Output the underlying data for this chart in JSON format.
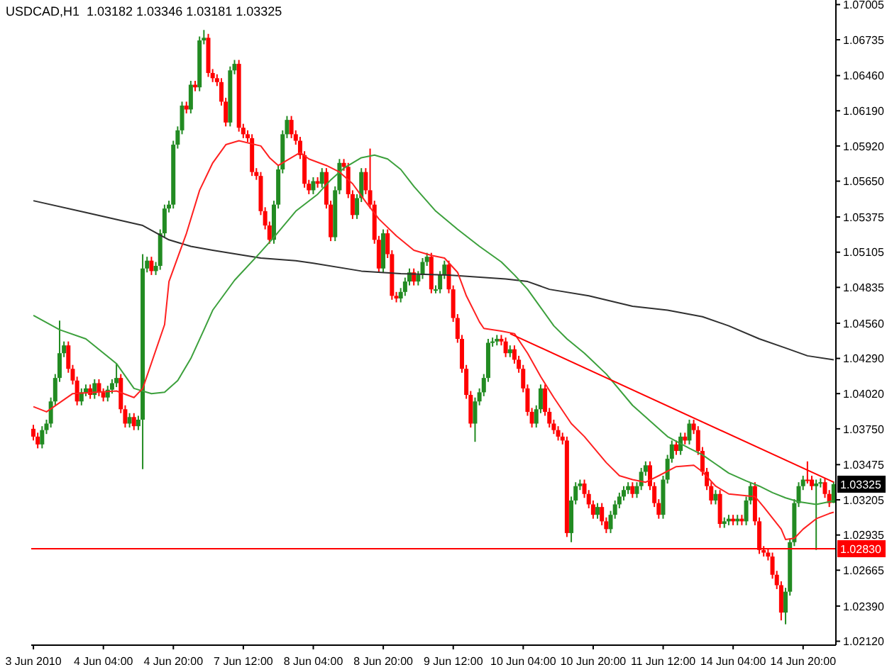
{
  "chart_data": {
    "type": "candlestick",
    "title": "USDCAD,H1  1.03182 1.03346 1.03181 1.03325",
    "categories": [
      "3 Jun 2010",
      null,
      null,
      null,
      null,
      null,
      null,
      null,
      null,
      null,
      null,
      null,
      null,
      null,
      null,
      null,
      "4 Jun 04:00",
      null,
      null,
      null,
      null,
      null,
      null,
      null,
      null,
      null,
      null,
      null,
      null,
      null,
      null,
      null,
      "4 Jun 20:00",
      null,
      null,
      null,
      null,
      null,
      null,
      null,
      null,
      null,
      null,
      null,
      null,
      null,
      null,
      null,
      "7 Jun 12:00",
      null,
      null,
      null,
      null,
      null,
      null,
      null,
      null,
      null,
      null,
      null,
      null,
      null,
      null,
      null,
      "8 Jun 04:00",
      null,
      null,
      null,
      null,
      null,
      null,
      null,
      null,
      null,
      null,
      null,
      null,
      null,
      null,
      null,
      "8 Jun 20:00",
      null,
      null,
      null,
      null,
      null,
      null,
      null,
      null,
      null,
      null,
      null,
      null,
      null,
      null,
      null,
      "9 Jun 12:00",
      null,
      null,
      null,
      null,
      null,
      null,
      null,
      null,
      null,
      null,
      null,
      null,
      null,
      null,
      null,
      "10 Jun 04:00",
      null,
      null,
      null,
      null,
      null,
      null,
      null,
      null,
      null,
      null,
      null,
      null,
      null,
      null,
      null,
      "10 Jun 20:00",
      null,
      null,
      null,
      null,
      null,
      null,
      null,
      null,
      null,
      null,
      null,
      null,
      null,
      null,
      null,
      "11 Jun 12:00",
      null,
      null,
      null,
      null,
      null,
      null,
      null,
      null,
      null,
      null,
      null,
      null,
      null,
      null,
      null,
      "14 Jun 04:00",
      null,
      null,
      null,
      null,
      null,
      null,
      null,
      null,
      null,
      null,
      null,
      null,
      null,
      null,
      null,
      "14 Jun 20:00",
      null,
      null,
      null,
      null,
      null,
      null,
      null
    ],
    "ohlc": [
      [
        1.0375,
        1.0378,
        1.0366,
        1.0369
      ],
      [
        1.0369,
        1.0372,
        1.036,
        1.0363
      ],
      [
        1.0363,
        1.0377,
        1.036,
        1.0374
      ],
      [
        1.0374,
        1.0382,
        1.0371,
        1.0379
      ],
      [
        1.0379,
        1.0399,
        1.0376,
        1.0396
      ],
      [
        1.0396,
        1.0417,
        1.0393,
        1.0414
      ],
      [
        1.0414,
        1.0458,
        1.0411,
        1.0433
      ],
      [
        1.0433,
        1.0442,
        1.043,
        1.0439
      ],
      [
        1.0439,
        1.0442,
        1.0418,
        1.0421
      ],
      [
        1.0421,
        1.0424,
        1.0409,
        1.0412
      ],
      [
        1.0412,
        1.0415,
        1.0393,
        1.0396
      ],
      [
        1.0396,
        1.0406,
        1.0393,
        1.0403
      ],
      [
        1.0403,
        1.0409,
        1.04,
        1.0406
      ],
      [
        1.0406,
        1.0409,
        1.0398,
        1.0401
      ],
      [
        1.0401,
        1.0413,
        1.0398,
        1.041
      ],
      [
        1.041,
        1.0413,
        1.04,
        1.0403
      ],
      [
        1.0403,
        1.0406,
        1.0396,
        1.0399
      ],
      [
        1.0399,
        1.0408,
        1.0396,
        1.0405
      ],
      [
        1.0405,
        1.0413,
        1.0402,
        1.041
      ],
      [
        1.041,
        1.0425,
        1.0407,
        1.0414
      ],
      [
        1.0414,
        1.0417,
        1.0387,
        1.039
      ],
      [
        1.039,
        1.0393,
        1.0376,
        1.0379
      ],
      [
        1.0379,
        1.0387,
        1.0376,
        1.0384
      ],
      [
        1.0384,
        1.0387,
        1.0374,
        1.0377
      ],
      [
        1.0377,
        1.0385,
        1.0374,
        1.0382
      ],
      [
        1.0382,
        1.0509,
        1.0344,
        1.0498
      ],
      [
        1.0498,
        1.0507,
        1.0495,
        1.0504
      ],
      [
        1.0504,
        1.0507,
        1.0493,
        1.0496
      ],
      [
        1.0496,
        1.0503,
        1.0493,
        1.05
      ],
      [
        1.05,
        1.0528,
        1.0497,
        1.0525
      ],
      [
        1.0525,
        1.0547,
        1.0522,
        1.0544
      ],
      [
        1.0544,
        1.055,
        1.0541,
        1.0547
      ],
      [
        1.0547,
        1.0596,
        1.0544,
        1.0593
      ],
      [
        1.0593,
        1.0607,
        1.059,
        1.0604
      ],
      [
        1.0604,
        1.0626,
        1.0601,
        1.0623
      ],
      [
        1.0623,
        1.0626,
        1.0617,
        1.062
      ],
      [
        1.062,
        1.0642,
        1.0617,
        1.0639
      ],
      [
        1.0639,
        1.0642,
        1.0634,
        1.0637
      ],
      [
        1.0637,
        1.0676,
        1.0634,
        1.0673
      ],
      [
        1.0673,
        1.0681,
        1.067,
        1.0675
      ],
      [
        1.0675,
        1.0678,
        1.0645,
        1.0648
      ],
      [
        1.0648,
        1.0651,
        1.0641,
        1.0644
      ],
      [
        1.0644,
        1.0647,
        1.0638,
        1.0641
      ],
      [
        1.0641,
        1.0644,
        1.0623,
        1.0626
      ],
      [
        1.0626,
        1.0629,
        1.0607,
        1.061
      ],
      [
        1.061,
        1.0653,
        1.0607,
        1.065
      ],
      [
        1.065,
        1.0658,
        1.0647,
        1.0655
      ],
      [
        1.0655,
        1.0658,
        1.0603,
        1.0606
      ],
      [
        1.0606,
        1.0609,
        1.0598,
        1.0601
      ],
      [
        1.0601,
        1.0604,
        1.0595,
        1.0598
      ],
      [
        1.0598,
        1.0601,
        1.0569,
        1.0572
      ],
      [
        1.0572,
        1.0575,
        1.0566,
        1.0569
      ],
      [
        1.0569,
        1.0572,
        1.0539,
        1.0542
      ],
      [
        1.0542,
        1.0545,
        1.0528,
        1.0531
      ],
      [
        1.0531,
        1.0534,
        1.0517,
        1.052
      ],
      [
        1.052,
        1.055,
        1.0517,
        1.0547
      ],
      [
        1.0547,
        1.0577,
        1.0544,
        1.0574
      ],
      [
        1.0574,
        1.0604,
        1.0571,
        1.0601
      ],
      [
        1.0601,
        1.0615,
        1.0598,
        1.0612
      ],
      [
        1.0612,
        1.0615,
        1.0598,
        1.0601
      ],
      [
        1.0601,
        1.0604,
        1.0593,
        1.0596
      ],
      [
        1.0596,
        1.0599,
        1.0582,
        1.0585
      ],
      [
        1.0585,
        1.0588,
        1.056,
        1.0563
      ],
      [
        1.0563,
        1.0566,
        1.0555,
        1.0558
      ],
      [
        1.0558,
        1.0568,
        1.0555,
        1.0565
      ],
      [
        1.0565,
        1.0568,
        1.056,
        1.0563
      ],
      [
        1.0563,
        1.0575,
        1.056,
        1.0572
      ],
      [
        1.0572,
        1.0575,
        1.0544,
        1.0547
      ],
      [
        1.0547,
        1.055,
        1.0519,
        1.0522
      ],
      [
        1.0522,
        1.0561,
        1.0519,
        1.0558
      ],
      [
        1.0558,
        1.0582,
        1.0555,
        1.0579
      ],
      [
        1.0579,
        1.0582,
        1.0573,
        1.0576
      ],
      [
        1.0576,
        1.0579,
        1.0552,
        1.0555
      ],
      [
        1.0555,
        1.0558,
        1.0536,
        1.0539
      ],
      [
        1.0539,
        1.0555,
        1.0536,
        1.0552
      ],
      [
        1.0552,
        1.0575,
        1.0549,
        1.0572
      ],
      [
        1.0572,
        1.0575,
        1.0555,
        1.0558
      ],
      [
        1.0558,
        1.059,
        1.0544,
        1.0547
      ],
      [
        1.0547,
        1.055,
        1.0517,
        1.052
      ],
      [
        1.052,
        1.0523,
        1.0495,
        1.0498
      ],
      [
        1.0498,
        1.0528,
        1.0495,
        1.0525
      ],
      [
        1.0525,
        1.0528,
        1.0506,
        1.0509
      ],
      [
        1.0509,
        1.0512,
        1.0474,
        1.0477
      ],
      [
        1.0477,
        1.048,
        1.0472,
        1.0475
      ],
      [
        1.0475,
        1.0483,
        1.0472,
        1.048
      ],
      [
        1.048,
        1.0491,
        1.0477,
        1.0488
      ],
      [
        1.0488,
        1.0498,
        1.0485,
        1.0495
      ],
      [
        1.0495,
        1.0498,
        1.0485,
        1.0488
      ],
      [
        1.0488,
        1.0496,
        1.0485,
        1.0493
      ],
      [
        1.0493,
        1.0506,
        1.049,
        1.0503
      ],
      [
        1.0503,
        1.051,
        1.05,
        1.0507
      ],
      [
        1.0507,
        1.051,
        1.0479,
        1.0482
      ],
      [
        1.0482,
        1.0485,
        1.0479,
        1.0482
      ],
      [
        1.0482,
        1.0496,
        1.0479,
        1.0493
      ],
      [
        1.0493,
        1.0504,
        1.049,
        1.0501
      ],
      [
        1.0501,
        1.0504,
        1.0479,
        1.0482
      ],
      [
        1.0482,
        1.0485,
        1.0457,
        1.046
      ],
      [
        1.046,
        1.0463,
        1.0441,
        1.0444
      ],
      [
        1.0444,
        1.0447,
        1.0418,
        1.0421
      ],
      [
        1.0421,
        1.0424,
        1.0398,
        1.0401
      ],
      [
        1.0401,
        1.0404,
        1.0376,
        1.0379
      ],
      [
        1.0379,
        1.0399,
        1.0365,
        1.0396
      ],
      [
        1.0396,
        1.0406,
        1.0393,
        1.0403
      ],
      [
        1.0403,
        1.0417,
        1.04,
        1.0414
      ],
      [
        1.0414,
        1.0444,
        1.0411,
        1.0441
      ],
      [
        1.0441,
        1.0445,
        1.0438,
        1.0442
      ],
      [
        1.0442,
        1.0447,
        1.0439,
        1.0444
      ],
      [
        1.0444,
        1.0447,
        1.0439,
        1.0442
      ],
      [
        1.0442,
        1.0445,
        1.043,
        1.0433
      ],
      [
        1.0433,
        1.0439,
        1.043,
        1.0436
      ],
      [
        1.0436,
        1.0439,
        1.0425,
        1.0428
      ],
      [
        1.0428,
        1.0431,
        1.0418,
        1.0421
      ],
      [
        1.0421,
        1.0424,
        1.0403,
        1.0406
      ],
      [
        1.0406,
        1.0409,
        1.0385,
        1.0388
      ],
      [
        1.0388,
        1.0391,
        1.0376,
        1.0379
      ],
      [
        1.0379,
        1.0393,
        1.0376,
        1.039
      ],
      [
        1.039,
        1.0409,
        1.0387,
        1.0406
      ],
      [
        1.0406,
        1.0409,
        1.0385,
        1.0388
      ],
      [
        1.0388,
        1.0391,
        1.0376,
        1.0379
      ],
      [
        1.0379,
        1.0382,
        1.0371,
        1.0374
      ],
      [
        1.0374,
        1.0377,
        1.0366,
        1.0369
      ],
      [
        1.0369,
        1.0372,
        1.0363,
        1.0366
      ],
      [
        1.0366,
        1.0369,
        1.0292,
        1.0295
      ],
      [
        1.0295,
        1.0323,
        1.0288,
        1.032
      ],
      [
        1.032,
        1.0334,
        1.0317,
        1.0331
      ],
      [
        1.0331,
        1.0336,
        1.0328,
        1.0333
      ],
      [
        1.0333,
        1.0336,
        1.0322,
        1.0325
      ],
      [
        1.0325,
        1.0328,
        1.0314,
        1.0317
      ],
      [
        1.0317,
        1.032,
        1.0306,
        1.0309
      ],
      [
        1.0309,
        1.0318,
        1.0306,
        1.0315
      ],
      [
        1.0315,
        1.0318,
        1.0301,
        1.0304
      ],
      [
        1.0304,
        1.0307,
        1.0295,
        1.0298
      ],
      [
        1.0298,
        1.0312,
        1.0295,
        1.0309
      ],
      [
        1.0309,
        1.032,
        1.0306,
        1.0317
      ],
      [
        1.0317,
        1.0326,
        1.0314,
        1.0323
      ],
      [
        1.0323,
        1.0331,
        1.032,
        1.0328
      ],
      [
        1.0328,
        1.0334,
        1.0325,
        1.0331
      ],
      [
        1.0331,
        1.0334,
        1.0322,
        1.0325
      ],
      [
        1.0325,
        1.0334,
        1.0322,
        1.0331
      ],
      [
        1.0331,
        1.0345,
        1.0328,
        1.0342
      ],
      [
        1.0342,
        1.035,
        1.0339,
        1.0347
      ],
      [
        1.0347,
        1.035,
        1.0328,
        1.0331
      ],
      [
        1.0331,
        1.0334,
        1.0315,
        1.0318
      ],
      [
        1.0318,
        1.0321,
        1.0306,
        1.0309
      ],
      [
        1.0309,
        1.0339,
        1.0306,
        1.0336
      ],
      [
        1.0336,
        1.0355,
        1.0333,
        1.0352
      ],
      [
        1.0352,
        1.0366,
        1.0349,
        1.0363
      ],
      [
        1.0363,
        1.0366,
        1.0355,
        1.0358
      ],
      [
        1.0358,
        1.0372,
        1.0355,
        1.0369
      ],
      [
        1.0369,
        1.0372,
        1.0363,
        1.0366
      ],
      [
        1.0366,
        1.0382,
        1.0363,
        1.0379
      ],
      [
        1.0379,
        1.0382,
        1.0371,
        1.0374
      ],
      [
        1.0374,
        1.0377,
        1.0355,
        1.0358
      ],
      [
        1.0358,
        1.0361,
        1.0339,
        1.0342
      ],
      [
        1.0342,
        1.0345,
        1.0328,
        1.0331
      ],
      [
        1.0331,
        1.0334,
        1.0317,
        1.032
      ],
      [
        1.032,
        1.0328,
        1.0317,
        1.0325
      ],
      [
        1.0325,
        1.0328,
        1.0299,
        1.0302
      ],
      [
        1.0302,
        1.0307,
        1.0299,
        1.0304
      ],
      [
        1.0304,
        1.0309,
        1.0301,
        1.0306
      ],
      [
        1.0306,
        1.0309,
        1.0301,
        1.0304
      ],
      [
        1.0304,
        1.0309,
        1.0301,
        1.0306
      ],
      [
        1.0306,
        1.0309,
        1.0301,
        1.0304
      ],
      [
        1.0304,
        1.0323,
        1.0301,
        1.032
      ],
      [
        1.032,
        1.0334,
        1.0317,
        1.0331
      ],
      [
        1.0331,
        1.0334,
        1.0301,
        1.0304
      ],
      [
        1.0304,
        1.0307,
        1.0279,
        1.0282
      ],
      [
        1.0282,
        1.0285,
        1.0277,
        1.028
      ],
      [
        1.028,
        1.0283,
        1.0274,
        1.0277
      ],
      [
        1.0277,
        1.028,
        1.026,
        1.0263
      ],
      [
        1.0263,
        1.0266,
        1.0252,
        1.0255
      ],
      [
        1.0255,
        1.0258,
        1.0228,
        1.0234
      ],
      [
        1.0234,
        1.0253,
        1.0225,
        1.025
      ],
      [
        1.025,
        1.0291,
        1.0247,
        1.0288
      ],
      [
        1.0288,
        1.0321,
        1.0285,
        1.0318
      ],
      [
        1.0318,
        1.0334,
        1.0315,
        1.0331
      ],
      [
        1.0331,
        1.0339,
        1.0328,
        1.0336
      ],
      [
        1.0336,
        1.035,
        1.0333,
        1.0336
      ],
      [
        1.0336,
        1.0339,
        1.0328,
        1.0331
      ],
      [
        1.0331,
        1.0336,
        1.0282,
        1.0333
      ],
      [
        1.0333,
        1.0337,
        1.033,
        1.0334
      ],
      [
        1.0334,
        1.0337,
        1.0322,
        1.0325
      ],
      [
        1.0325,
        1.0328,
        1.0315,
        1.0318
      ],
      [
        1.03182,
        1.03346,
        1.03181,
        1.03325
      ]
    ],
    "colors": [
      "#ff0000",
      "#ff0000",
      "#228b22",
      "#228b22",
      "#228b22",
      "#228b22",
      "#228b22",
      "#228b22",
      "#ff0000",
      "#ff0000",
      "#ff0000",
      "#228b22",
      "#228b22",
      "#ff0000",
      "#228b22",
      "#ff0000",
      "#ff0000",
      "#228b22",
      "#228b22",
      "#228b22",
      "#ff0000",
      "#ff0000",
      "#228b22",
      "#ff0000",
      "#228b22",
      "#228b22",
      "#228b22",
      "#ff0000",
      "#228b22",
      "#228b22",
      "#228b22",
      "#228b22",
      "#228b22",
      "#228b22",
      "#228b22",
      "#ff0000",
      "#228b22",
      "#ff0000",
      "#228b22",
      "#228b22",
      "#ff0000",
      "#ff0000",
      "#ff0000",
      "#ff0000",
      "#ff0000",
      "#228b22",
      "#228b22",
      "#ff0000",
      "#ff0000",
      "#ff0000",
      "#ff0000",
      "#ff0000",
      "#ff0000",
      "#ff0000",
      "#ff0000",
      "#228b22",
      "#228b22",
      "#228b22",
      "#228b22",
      "#ff0000",
      "#ff0000",
      "#ff0000",
      "#ff0000",
      "#ff0000",
      "#228b22",
      "#ff0000",
      "#228b22",
      "#ff0000",
      "#ff0000",
      "#228b22",
      "#228b22",
      "#ff0000",
      "#ff0000",
      "#ff0000",
      "#228b22",
      "#228b22",
      "#ff0000",
      "#ff0000",
      "#ff0000",
      "#ff0000",
      "#228b22",
      "#ff0000",
      "#ff0000",
      "#ff0000",
      "#228b22",
      "#228b22",
      "#228b22",
      "#ff0000",
      "#228b22",
      "#228b22",
      "#228b22",
      "#ff0000",
      "#228b22",
      "#228b22",
      "#228b22",
      "#ff0000",
      "#ff0000",
      "#ff0000",
      "#ff0000",
      "#ff0000",
      "#ff0000",
      "#228b22",
      "#228b22",
      "#228b22",
      "#228b22",
      "#228b22",
      "#228b22",
      "#ff0000",
      "#ff0000",
      "#228b22",
      "#ff0000",
      "#ff0000",
      "#ff0000",
      "#ff0000",
      "#ff0000",
      "#228b22",
      "#228b22",
      "#ff0000",
      "#ff0000",
      "#ff0000",
      "#ff0000",
      "#ff0000",
      "#ff0000",
      "#228b22",
      "#228b22",
      "#228b22",
      "#ff0000",
      "#ff0000",
      "#ff0000",
      "#228b22",
      "#ff0000",
      "#ff0000",
      "#228b22",
      "#228b22",
      "#228b22",
      "#228b22",
      "#228b22",
      "#ff0000",
      "#228b22",
      "#228b22",
      "#228b22",
      "#ff0000",
      "#ff0000",
      "#ff0000",
      "#228b22",
      "#228b22",
      "#228b22",
      "#ff0000",
      "#228b22",
      "#ff0000",
      "#228b22",
      "#ff0000",
      "#ff0000",
      "#ff0000",
      "#ff0000",
      "#ff0000",
      "#228b22",
      "#ff0000",
      "#228b22",
      "#228b22",
      "#ff0000",
      "#228b22",
      "#ff0000",
      "#228b22",
      "#228b22",
      "#ff0000",
      "#ff0000",
      "#ff0000",
      "#ff0000",
      "#ff0000",
      "#ff0000",
      "#ff0000",
      "#228b22",
      "#228b22",
      "#228b22",
      "#228b22",
      "#228b22",
      "#ff0000",
      "#ff0000",
      "#228b22",
      "#228b22",
      "#ff0000",
      "#ff0000",
      "#228b22"
    ],
    "series": [
      {
        "type": "line",
        "color": "#303030",
        "values": [
          1.055,
          null,
          null,
          null,
          null,
          null,
          null,
          null,
          null,
          null,
          null,
          null,
          1.0541,
          null,
          null,
          null,
          null,
          null,
          null,
          null,
          null,
          null,
          null,
          null,
          null,
          1.0531,
          null,
          null,
          null,
          null,
          null,
          1.052,
          null,
          null,
          null,
          null,
          1.0515,
          null,
          null,
          null,
          null,
          1.0512,
          null,
          null,
          null,
          null,
          null,
          null,
          null,
          null,
          null,
          null,
          1.0506,
          null,
          null,
          null,
          null,
          null,
          null,
          null,
          1.0504,
          null,
          null,
          null,
          1.0502,
          null,
          null,
          null,
          null,
          null,
          null,
          null,
          null,
          null,
          null,
          1.0496,
          null,
          null,
          null,
          null,
          null,
          null,
          null,
          null,
          1.0494,
          null,
          null,
          null,
          null,
          null,
          null,
          null,
          null,
          null,
          null,
          1.0493,
          null,
          null,
          null,
          null,
          null,
          null,
          null,
          null,
          null,
          null,
          null,
          null,
          1.049,
          null,
          null,
          null,
          null,
          1.0488,
          null,
          null,
          null,
          null,
          1.0482,
          null,
          null,
          null,
          null,
          null,
          null,
          null,
          null,
          1.0477,
          null,
          null,
          null,
          null,
          null,
          null,
          null,
          null,
          null,
          1.0469,
          null,
          null,
          null,
          null,
          null,
          null,
          null,
          1.0466,
          null,
          null,
          null,
          null,
          null,
          null,
          null,
          1.0461,
          null,
          null,
          null,
          null,
          null,
          1.0454,
          null,
          null,
          null,
          null,
          null,
          null,
          1.0444,
          null,
          null,
          null,
          null,
          null,
          1.0437,
          null,
          null,
          null,
          null,
          1.0431,
          null,
          null,
          null,
          null,
          null,
          1.0428
        ]
      },
      {
        "type": "line",
        "color": "#3ca03c",
        "values": [
          1.0462,
          null,
          null,
          null,
          null,
          null,
          1.0451,
          null,
          null,
          null,
          null,
          null,
          1.0444,
          null,
          null,
          null,
          null,
          null,
          null,
          1.0425,
          null,
          null,
          null,
          1.0406,
          null,
          null,
          null,
          1.0402,
          null,
          null,
          1.0403,
          null,
          null,
          1.0412,
          null,
          null,
          1.0429,
          null,
          null,
          1.0451,
          null,
          1.0466,
          null,
          null,
          null,
          null,
          1.0489,
          null,
          null,
          null,
          null,
          1.0507,
          null,
          null,
          null,
          1.0522,
          null,
          null,
          null,
          null,
          1.0542,
          null,
          null,
          null,
          null,
          1.0555,
          null,
          null,
          1.0566,
          null,
          null,
          1.0575,
          null,
          null,
          null,
          1.0583,
          null,
          null,
          1.0585,
          null,
          null,
          1.0582,
          null,
          null,
          1.0574,
          null,
          null,
          1.0561,
          null,
          null,
          null,
          null,
          1.0542,
          null,
          null,
          null,
          null,
          1.0528,
          null,
          null,
          null,
          null,
          1.0515,
          null,
          null,
          null,
          null,
          1.0503,
          null,
          null,
          1.0493,
          null,
          null,
          1.0482,
          null,
          null,
          1.0468,
          null,
          null,
          1.0454,
          null,
          null,
          1.0444,
          null,
          null,
          null,
          1.0433,
          null,
          null,
          null,
          null,
          1.0417,
          null,
          null,
          null,
          null,
          null,
          1.0393,
          null,
          null,
          null,
          null,
          null,
          null,
          null,
          1.0369,
          null,
          null,
          null,
          null,
          1.036,
          null,
          null,
          1.0355,
          null,
          null,
          1.0348,
          null,
          null,
          1.0341,
          null,
          null,
          null,
          1.0335,
          null,
          null,
          1.0331,
          null,
          null,
          1.0326,
          null,
          null,
          1.0322,
          null,
          null,
          1.0319,
          null,
          null,
          null,
          1.0317,
          null,
          null,
          1.0319,
          1.032
        ]
      },
      {
        "type": "line",
        "color": "#ff2020",
        "values": [
          1.0392,
          null,
          null,
          1.0388,
          null,
          null,
          null,
          null,
          null,
          1.0402,
          null,
          null,
          null,
          null,
          null,
          null,
          null,
          null,
          null,
          1.0404,
          null,
          null,
          null,
          1.0399,
          null,
          1.0406,
          null,
          null,
          null,
          null,
          1.0455,
          1.0488,
          null,
          null,
          null,
          1.0525,
          null,
          null,
          1.0558,
          null,
          null,
          1.0579,
          null,
          null,
          1.0593,
          null,
          null,
          1.0596,
          null,
          null,
          null,
          null,
          1.0592,
          null,
          1.0583,
          null,
          1.0577,
          null,
          null,
          1.0583,
          null,
          1.0587,
          null,
          1.0582,
          null,
          null,
          null,
          1.0577,
          null,
          null,
          1.0572,
          null,
          null,
          1.0563,
          null,
          null,
          1.0549,
          null,
          null,
          1.0536,
          null,
          null,
          null,
          1.0523,
          null,
          null,
          null,
          1.0512,
          null,
          null,
          null,
          1.0508,
          null,
          null,
          1.0506,
          null,
          null,
          1.0495,
          null,
          1.0477,
          null,
          null,
          1.0457,
          1.0452,
          null,
          null,
          null,
          1.045,
          null,
          null,
          1.0448,
          null,
          null,
          1.0433,
          null,
          null,
          1.0415,
          null,
          null,
          1.0399,
          null,
          null,
          null,
          1.0379,
          null,
          null,
          1.0369,
          null,
          null,
          null,
          null,
          1.0349,
          null,
          null,
          1.0339,
          null,
          null,
          1.0336,
          null,
          null,
          1.0334,
          null,
          null,
          1.0339,
          null,
          null,
          null,
          1.0346,
          null,
          null,
          null,
          1.0347,
          null,
          1.0342,
          null,
          null,
          1.0331,
          null,
          null,
          1.0325,
          null,
          null,
          null,
          null,
          null,
          1.0323,
          null,
          1.0315,
          null,
          null,
          null,
          1.0298,
          1.029,
          null,
          1.0291,
          null,
          1.0298,
          null,
          null,
          1.0306,
          null,
          null,
          1.031,
          1.0311
        ]
      },
      {
        "type": "line",
        "color": "#ff0000",
        "values": [
          null,
          null,
          null,
          null,
          null,
          null,
          null,
          null,
          null,
          null,
          null,
          null,
          null,
          null,
          null,
          null,
          null,
          null,
          null,
          null,
          null,
          null,
          null,
          null,
          null,
          null,
          null,
          null,
          null,
          null,
          null,
          null,
          null,
          null,
          null,
          null,
          null,
          null,
          null,
          null,
          null,
          null,
          null,
          null,
          null,
          null,
          null,
          null,
          null,
          null,
          null,
          null,
          null,
          null,
          null,
          null,
          null,
          null,
          null,
          null,
          null,
          null,
          null,
          null,
          null,
          null,
          null,
          null,
          null,
          null,
          null,
          null,
          null,
          null,
          null,
          null,
          null,
          null,
          null,
          null,
          null,
          null,
          null,
          null,
          null,
          null,
          null,
          null,
          null,
          null,
          null,
          null,
          null,
          null,
          null,
          null,
          null,
          null,
          null,
          null,
          null,
          null,
          null,
          null,
          null,
          null,
          null,
          null,
          null,
          1.0448,
          null,
          null,
          null,
          null,
          null,
          null,
          null,
          null,
          null,
          null,
          null,
          null,
          null,
          null,
          null,
          null,
          null,
          null,
          null,
          null,
          null,
          null,
          null,
          null,
          null,
          null,
          null,
          null,
          null,
          null,
          null,
          null,
          null,
          null,
          null,
          null,
          null,
          null,
          null,
          null,
          null,
          null,
          null,
          null,
          null,
          null,
          null,
          null,
          null,
          null,
          null,
          null,
          null,
          null,
          null,
          null,
          null,
          null,
          null,
          null,
          null,
          null,
          null,
          null,
          null,
          null,
          null,
          null,
          null,
          null,
          null,
          null,
          null,
          1.0334
        ]
      }
    ],
    "ylim": [
      1.0209,
      1.0704
    ],
    "yticks": [
      {
        "value": 1.07005,
        "label": "1.07005"
      },
      {
        "value": 1.06735,
        "label": "1.06735"
      },
      {
        "value": 1.0646,
        "label": "1.06460"
      },
      {
        "value": 1.0619,
        "label": "1.06190"
      },
      {
        "value": 1.0592,
        "label": "1.05920"
      },
      {
        "value": 1.0565,
        "label": "1.05650"
      },
      {
        "value": 1.05375,
        "label": "1.05375"
      },
      {
        "value": 1.05105,
        "label": "1.05105"
      },
      {
        "value": 1.04835,
        "label": "1.04835"
      },
      {
        "value": 1.0456,
        "label": "1.04560"
      },
      {
        "value": 1.0429,
        "label": "1.04290"
      },
      {
        "value": 1.0402,
        "label": "1.04020"
      },
      {
        "value": 1.0375,
        "label": "1.03750"
      },
      {
        "value": 1.03475,
        "label": "1.03475"
      },
      {
        "value": 1.03205,
        "label": "1.03205"
      },
      {
        "value": 1.02935,
        "label": "1.02935"
      },
      {
        "value": 1.02665,
        "label": "1.02665"
      },
      {
        "value": 1.0239,
        "label": "1.02390"
      },
      {
        "value": 1.0212,
        "label": "1.02120"
      }
    ],
    "ref_lines": [
      {
        "axis": "y",
        "value": 1.0283,
        "label": "1.02830",
        "color": "#ff0000"
      }
    ],
    "annotations": [
      {
        "text": "1.03325",
        "y": 1.03325
      }
    ]
  }
}
